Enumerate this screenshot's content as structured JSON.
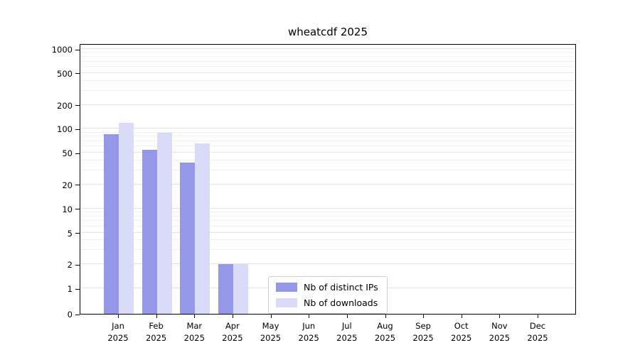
{
  "chart_data": {
    "type": "bar",
    "title": "wheatcdf 2025",
    "categories": [
      "Jan",
      "Feb",
      "Mar",
      "Apr",
      "May",
      "Jun",
      "Jul",
      "Aug",
      "Sep",
      "Oct",
      "Nov",
      "Dec"
    ],
    "year_label": "2025",
    "series": [
      {
        "name": "Nb of distinct IPs",
        "color": "#9597e8",
        "values": [
          85,
          55,
          38,
          2,
          0,
          0,
          0,
          0,
          0,
          0,
          0,
          0
        ]
      },
      {
        "name": "Nb of downloads",
        "color": "#d9dbf8",
        "values": [
          120,
          90,
          65,
          2,
          0,
          0,
          0,
          0,
          0,
          0,
          0,
          0
        ]
      }
    ],
    "y_ticks": [
      0,
      1,
      2,
      5,
      10,
      20,
      50,
      100,
      200,
      500,
      1000
    ],
    "y_scale": "symlog",
    "ylim": [
      0,
      1200
    ],
    "grid": "horizontal",
    "legend_position": "lower-center"
  }
}
